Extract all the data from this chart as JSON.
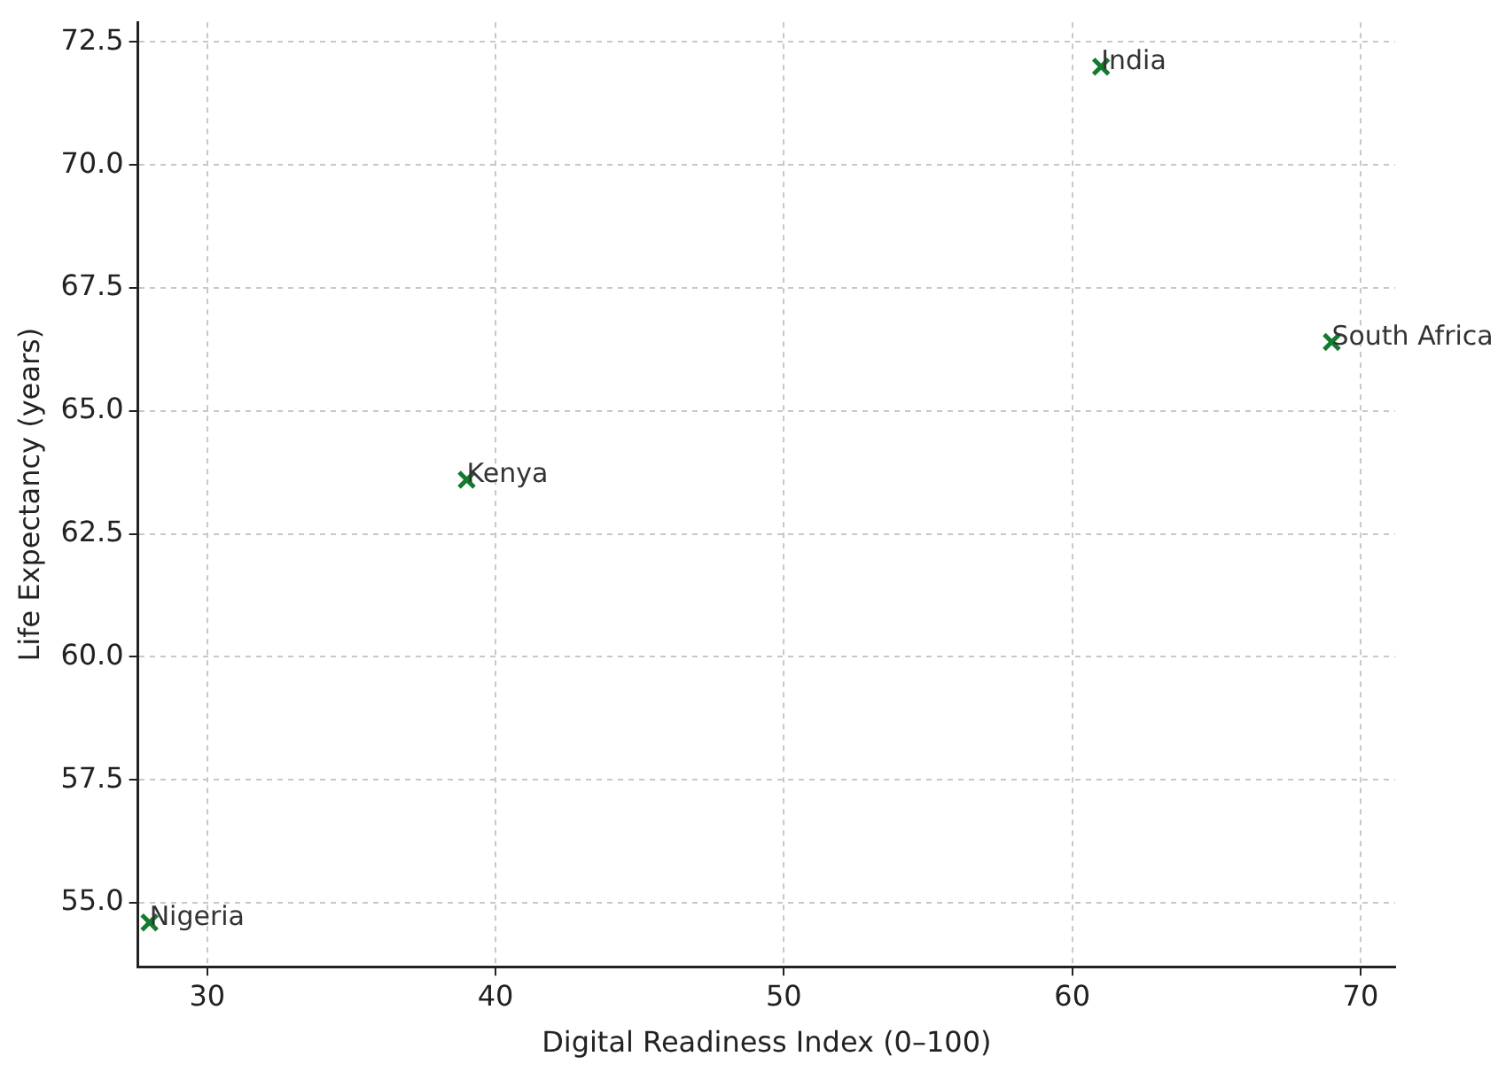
{
  "chart_data": {
    "type": "scatter",
    "xlabel": "Digital Readiness Index (0–100)",
    "ylabel": "Life Expectancy (years)",
    "x": [
      61,
      69,
      39,
      28
    ],
    "values": [
      72.0,
      66.4,
      63.6,
      54.6
    ],
    "color": "#137a2e",
    "marker": "cross",
    "xlim": [
      27.6,
      71.2
    ],
    "xticks": [
      30,
      40,
      50,
      60,
      70
    ],
    "ylim": [
      53.7,
      72.9
    ],
    "yticks": [
      {
        "value": 55,
        "label": "55.0"
      },
      {
        "value": 57.5,
        "label": "57.5"
      },
      {
        "value": 60,
        "label": "60.0"
      },
      {
        "value": 62.5,
        "label": "62.5"
      },
      {
        "value": 65,
        "label": "65.0"
      },
      {
        "value": 67.5,
        "label": "67.5"
      },
      {
        "value": 70,
        "label": "70.0"
      },
      {
        "value": 72.5,
        "label": "72.5"
      }
    ],
    "grid": true,
    "legend": false,
    "annotations": [
      {
        "text": "India",
        "x": 61,
        "y": 72.0
      },
      {
        "text": "South Africa",
        "x": 69,
        "y": 66.4
      },
      {
        "text": "Kenya",
        "x": 39,
        "y": 63.6
      },
      {
        "text": "Nigeria",
        "x": 28,
        "y": 54.6
      }
    ]
  }
}
